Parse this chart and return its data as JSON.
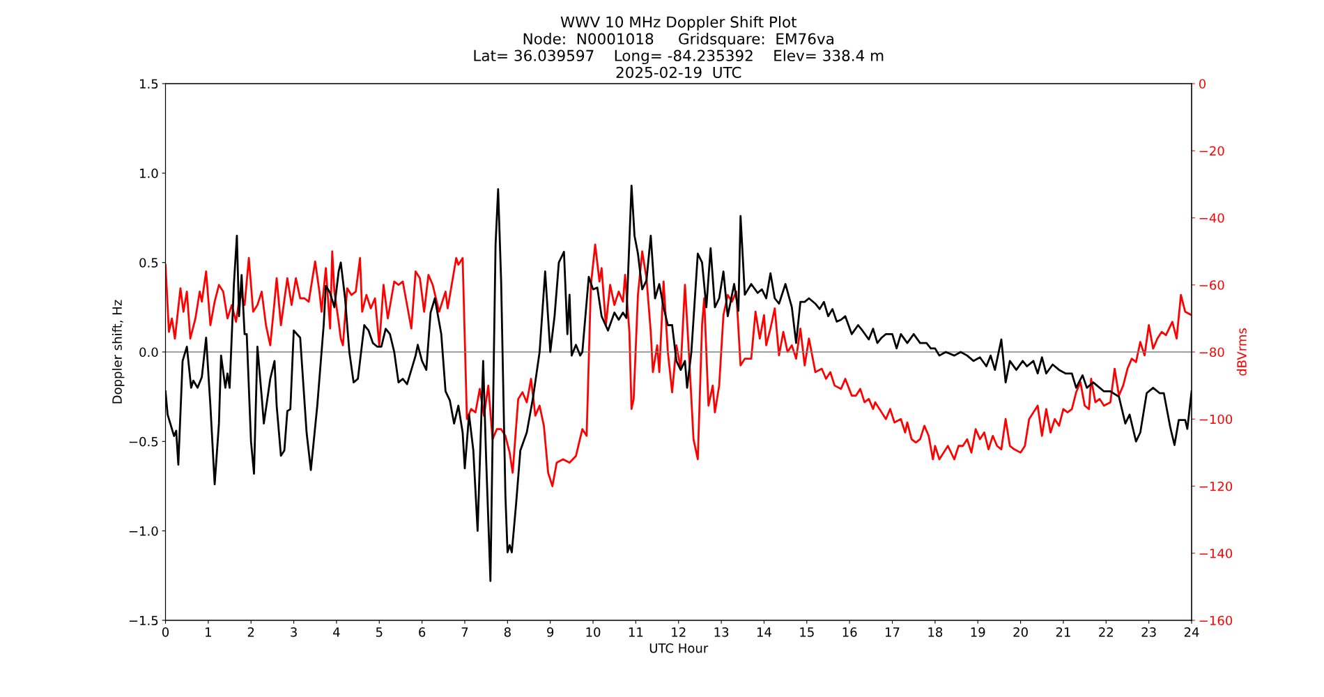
{
  "chart_data": {
    "type": "line",
    "title": "WWV 10 MHz Doppler Shift Plot\nNode:  N0001018     Gridsquare:  EM76va\nLat= 36.039597    Long= -84.235392    Elev= 338.4 m\n2025-02-19  UTC",
    "xlabel": "UTC Hour",
    "ylabel": "Doppler shift, Hz",
    "y2label": "dBVrms",
    "xlim": [
      0,
      24
    ],
    "xticks": [
      0,
      1,
      2,
      3,
      4,
      5,
      6,
      7,
      8,
      9,
      10,
      11,
      12,
      13,
      14,
      15,
      16,
      17,
      18,
      19,
      20,
      21,
      22,
      23,
      24
    ],
    "ylim": [
      -1.5,
      1.5
    ],
    "yticks": [
      {
        "value": -1.5,
        "label": "−1.5"
      },
      {
        "value": -1.0,
        "label": "−1.0"
      },
      {
        "value": -0.5,
        "label": "−0.5"
      },
      {
        "value": 0.0,
        "label": "0.0"
      },
      {
        "value": 0.5,
        "label": "0.5"
      },
      {
        "value": 1.0,
        "label": "1.0"
      },
      {
        "value": 1.5,
        "label": "1.5"
      }
    ],
    "y2lim": [
      -160,
      0
    ],
    "y2ticks": [
      {
        "value": -160,
        "label": "−160"
      },
      {
        "value": -140,
        "label": "−140"
      },
      {
        "value": -120,
        "label": "−120"
      },
      {
        "value": -100,
        "label": "−100"
      },
      {
        "value": -80,
        "label": "−80"
      },
      {
        "value": -60,
        "label": "−60"
      },
      {
        "value": -40,
        "label": "−40"
      },
      {
        "value": -20,
        "label": "−20"
      },
      {
        "value": 0,
        "label": "0"
      }
    ],
    "grid": false,
    "line_style": "solid",
    "marker": "none",
    "ref_lines": [
      {
        "axis": "y",
        "value": 0,
        "color": "#808080",
        "line_style": "solid"
      }
    ],
    "series": [
      {
        "color": "#000000",
        "x": [
          0,
          0.05,
          0.2,
          0.25,
          0.3,
          0.4,
          0.5,
          0.6,
          0.65,
          0.75,
          0.85,
          0.95,
          1.05,
          1.15,
          1.25,
          1.3,
          1.4,
          1.45,
          1.5,
          1.6,
          1.67,
          1.72,
          1.78,
          1.85,
          1.9,
          2.0,
          2.07,
          2.15,
          2.25,
          2.3,
          2.45,
          2.55,
          2.6,
          2.7,
          2.78,
          2.85,
          2.92,
          3.0,
          3.15,
          3.3,
          3.4,
          3.55,
          3.7,
          3.75,
          3.85,
          3.95,
          4.05,
          4.1,
          4.2,
          4.3,
          4.4,
          4.5,
          4.65,
          4.75,
          4.85,
          4.95,
          5.05,
          5.15,
          5.25,
          5.35,
          5.45,
          5.55,
          5.65,
          5.8,
          5.85,
          5.9,
          6.0,
          6.1,
          6.2,
          6.3,
          6.45,
          6.55,
          6.65,
          6.75,
          6.85,
          6.95,
          7.0,
          7.1,
          7.2,
          7.3,
          7.43,
          7.5,
          7.6,
          7.72,
          7.78,
          7.85,
          7.95,
          8.0,
          8.05,
          8.1,
          8.2,
          8.3,
          8.45,
          8.6,
          8.75,
          8.88,
          9.0,
          9.1,
          9.2,
          9.32,
          9.4,
          9.45,
          9.5,
          9.6,
          9.7,
          9.75,
          9.9,
          10.0,
          10.1,
          10.2,
          10.35,
          10.5,
          10.6,
          10.7,
          10.78,
          10.9,
          10.97,
          11.05,
          11.15,
          11.25,
          11.35,
          11.45,
          11.55,
          11.65,
          11.75,
          11.85,
          11.95,
          12.05,
          12.15,
          12.2,
          12.3,
          12.45,
          12.55,
          12.65,
          12.75,
          12.85,
          12.95,
          13.05,
          13.15,
          13.3,
          13.4,
          13.45,
          13.55,
          13.7,
          13.85,
          13.95,
          14.05,
          14.15,
          14.25,
          14.35,
          14.5,
          14.65,
          14.75,
          14.85,
          14.95,
          15.05,
          15.2,
          15.3,
          15.4,
          15.5,
          15.6,
          15.7,
          15.8,
          15.9,
          16.05,
          16.2,
          16.3,
          16.45,
          16.55,
          16.65,
          16.75,
          16.85,
          17.0,
          17.1,
          17.2,
          17.35,
          17.5,
          17.65,
          17.8,
          17.9,
          18.0,
          18.1,
          18.25,
          18.45,
          18.6,
          18.75,
          18.9,
          19.05,
          19.2,
          19.3,
          19.4,
          19.55,
          19.65,
          19.75,
          19.9,
          20.05,
          20.15,
          20.3,
          20.4,
          20.5,
          20.6,
          20.75,
          20.9,
          21.05,
          21.2,
          21.3,
          21.45,
          21.55,
          21.7,
          21.85,
          21.95,
          22.1,
          22.3,
          22.45,
          22.55,
          22.7,
          22.8,
          22.95,
          23.1,
          23.25,
          23.35,
          23.5,
          23.6,
          23.7,
          23.85,
          23.9,
          24.0
        ],
        "values": [
          -0.22,
          -0.35,
          -0.47,
          -0.44,
          -0.63,
          -0.05,
          0.03,
          -0.2,
          -0.16,
          -0.2,
          -0.14,
          0.08,
          -0.3,
          -0.74,
          -0.4,
          -0.02,
          -0.2,
          -0.12,
          -0.2,
          0.38,
          0.65,
          0.2,
          0.43,
          0.1,
          0.1,
          -0.5,
          -0.68,
          0.03,
          -0.25,
          -0.4,
          -0.15,
          -0.05,
          -0.3,
          -0.58,
          -0.55,
          -0.33,
          -0.32,
          0.12,
          0.08,
          -0.45,
          -0.66,
          -0.3,
          0.15,
          0.37,
          0.33,
          0.25,
          0.45,
          0.5,
          0.3,
          0.0,
          -0.17,
          -0.15,
          0.15,
          0.12,
          0.05,
          0.03,
          0.03,
          0.13,
          0.1,
          0.0,
          -0.17,
          -0.15,
          -0.18,
          -0.06,
          -0.02,
          0.04,
          -0.05,
          -0.1,
          0.22,
          0.3,
          0.1,
          -0.22,
          -0.27,
          -0.4,
          -0.3,
          -0.45,
          -0.65,
          -0.35,
          -0.55,
          -1.0,
          -0.05,
          -0.6,
          -1.28,
          0.6,
          0.91,
          0.4,
          -0.8,
          -1.12,
          -1.08,
          -1.12,
          -0.85,
          -0.55,
          -0.45,
          -0.25,
          0.0,
          0.45,
          0.0,
          0.2,
          0.5,
          0.56,
          0.1,
          0.32,
          -0.02,
          0.04,
          -0.02,
          0.0,
          0.42,
          0.35,
          0.36,
          0.2,
          0.12,
          0.22,
          0.18,
          0.22,
          0.19,
          0.93,
          0.65,
          0.55,
          0.35,
          0.4,
          0.65,
          0.3,
          0.38,
          0.25,
          0.15,
          0.15,
          -0.05,
          -0.1,
          -0.05,
          -0.2,
          0.0,
          0.55,
          0.5,
          0.25,
          0.58,
          0.25,
          0.3,
          0.45,
          0.2,
          0.38,
          0.23,
          0.76,
          0.32,
          0.38,
          0.33,
          0.35,
          0.3,
          0.44,
          0.3,
          0.27,
          0.38,
          0.25,
          0.05,
          0.28,
          0.28,
          0.3,
          0.27,
          0.24,
          0.28,
          0.2,
          0.24,
          0.17,
          0.18,
          0.2,
          0.1,
          0.15,
          0.12,
          0.07,
          0.13,
          0.05,
          0.08,
          0.1,
          0.1,
          0.02,
          0.1,
          0.05,
          0.1,
          0.05,
          0.05,
          0.02,
          0.02,
          -0.02,
          0.0,
          -0.02,
          0.0,
          -0.02,
          -0.05,
          -0.03,
          -0.08,
          -0.02,
          -0.1,
          0.07,
          -0.17,
          -0.05,
          -0.1,
          -0.05,
          -0.08,
          -0.05,
          -0.12,
          -0.03,
          -0.12,
          -0.07,
          -0.1,
          -0.12,
          -0.12,
          -0.2,
          -0.13,
          -0.2,
          -0.17,
          -0.2,
          -0.22,
          -0.22,
          -0.25,
          -0.4,
          -0.35,
          -0.5,
          -0.45,
          -0.23,
          -0.2,
          -0.23,
          -0.23,
          -0.42,
          -0.52,
          -0.38,
          -0.38,
          -0.43,
          -0.22
        ]
      },
      {
        "color": "#ff0000",
        "axis": "y2",
        "x": [
          0,
          0.08,
          0.15,
          0.22,
          0.35,
          0.42,
          0.5,
          0.58,
          0.7,
          0.8,
          0.85,
          0.95,
          1.05,
          1.15,
          1.25,
          1.35,
          1.45,
          1.55,
          1.65,
          1.75,
          1.85,
          1.95,
          2.05,
          2.15,
          2.25,
          2.35,
          2.45,
          2.55,
          2.6,
          2.7,
          2.85,
          2.95,
          3.05,
          3.15,
          3.25,
          3.35,
          3.5,
          3.6,
          3.65,
          3.75,
          3.85,
          3.9,
          3.95,
          4.05,
          4.1,
          4.15,
          4.25,
          4.35,
          4.45,
          4.55,
          4.6,
          4.7,
          4.8,
          4.9,
          5.0,
          5.1,
          5.2,
          5.35,
          5.45,
          5.55,
          5.65,
          5.75,
          5.85,
          5.95,
          6.05,
          6.15,
          6.25,
          6.4,
          6.55,
          6.6,
          6.8,
          6.85,
          6.95,
          7.05,
          7.15,
          7.25,
          7.35,
          7.45,
          7.55,
          7.65,
          7.75,
          7.85,
          7.95,
          8.05,
          8.12,
          8.25,
          8.35,
          8.45,
          8.55,
          8.65,
          8.75,
          8.85,
          8.95,
          9.05,
          9.15,
          9.3,
          9.45,
          9.6,
          9.75,
          9.85,
          9.95,
          10.05,
          10.15,
          10.2,
          10.3,
          10.4,
          10.5,
          10.6,
          10.7,
          10.75,
          10.85,
          10.9,
          10.95,
          11.05,
          11.15,
          11.25,
          11.35,
          11.4,
          11.5,
          11.55,
          11.65,
          11.75,
          11.85,
          11.95,
          12.05,
          12.15,
          12.25,
          12.35,
          12.45,
          12.55,
          12.6,
          12.7,
          12.8,
          12.85,
          12.95,
          13.05,
          13.15,
          13.25,
          13.35,
          13.45,
          13.55,
          13.7,
          13.8,
          13.9,
          14.0,
          14.05,
          14.15,
          14.25,
          14.35,
          14.45,
          14.55,
          14.65,
          14.75,
          14.85,
          14.95,
          15.05,
          15.2,
          15.35,
          15.45,
          15.55,
          15.65,
          15.8,
          15.9,
          16.05,
          16.15,
          16.25,
          16.35,
          16.45,
          16.55,
          16.6,
          16.75,
          16.85,
          16.95,
          17.05,
          17.2,
          17.3,
          17.35,
          17.45,
          17.55,
          17.65,
          17.75,
          17.85,
          17.95,
          18.0,
          18.1,
          18.2,
          18.3,
          18.45,
          18.55,
          18.65,
          18.75,
          18.85,
          18.95,
          19.05,
          19.15,
          19.25,
          19.35,
          19.45,
          19.55,
          19.65,
          19.75,
          19.85,
          20.0,
          20.1,
          20.2,
          20.3,
          20.4,
          20.5,
          20.6,
          20.7,
          20.8,
          20.9,
          21.0,
          21.1,
          21.2,
          21.3,
          21.4,
          21.5,
          21.6,
          21.65,
          21.75,
          21.85,
          21.95,
          22.1,
          22.2,
          22.3,
          22.4,
          22.5,
          22.6,
          22.7,
          22.8,
          22.9,
          23.0,
          23.1,
          23.2,
          23.3,
          23.4,
          23.55,
          23.65,
          23.75,
          23.85,
          24.0
        ],
        "values": [
          -54,
          -74,
          -70,
          -76,
          -61,
          -68,
          -62,
          -76,
          -70,
          -62,
          -65,
          -56,
          -72,
          -65,
          -60,
          -62,
          -70,
          -66,
          -71,
          -62,
          -66,
          -52,
          -68,
          -66,
          -62,
          -72,
          -78,
          -65,
          -58,
          -72,
          -58,
          -66,
          -58,
          -64,
          -64,
          -65,
          -53,
          -62,
          -68,
          -55,
          -73,
          -50,
          -62,
          -71,
          -76,
          -78,
          -61,
          -63,
          -62,
          -52,
          -68,
          -63,
          -67,
          -64,
          -78,
          -60,
          -70,
          -59,
          -60,
          -59,
          -66,
          -73,
          -56,
          -58,
          -68,
          -57,
          -60,
          -68,
          -62,
          -67,
          -52,
          -54,
          -52,
          -100,
          -97,
          -98,
          -91,
          -99,
          -90,
          -106,
          -103,
          -103,
          -105,
          -110,
          -116,
          -94,
          -92,
          -95,
          -88,
          -99,
          -96,
          -102,
          -116,
          -120,
          -113,
          -112,
          -113,
          -111,
          -103,
          -105,
          -60,
          -48,
          -59,
          -55,
          -72,
          -60,
          -66,
          -62,
          -65,
          -57,
          -74,
          -97,
          -94,
          -63,
          -50,
          -58,
          -74,
          -86,
          -78,
          -86,
          -59,
          -80,
          -92,
          -78,
          -85,
          -60,
          -82,
          -106,
          -112,
          -72,
          -64,
          -96,
          -90,
          -98,
          -90,
          -69,
          -63,
          -65,
          -62,
          -84,
          -82,
          -82,
          -68,
          -76,
          -69,
          -78,
          -73,
          -67,
          -81,
          -74,
          -80,
          -78,
          -82,
          -73,
          -84,
          -76,
          -86,
          -85,
          -88,
          -86,
          -90,
          -91,
          -88,
          -93,
          -93,
          -91,
          -95,
          -94,
          -97,
          -95,
          -98,
          -100,
          -97,
          -101,
          -100,
          -104,
          -101,
          -106,
          -107,
          -106,
          -102,
          -105,
          -112,
          -108,
          -112,
          -110,
          -108,
          -112,
          -108,
          -108,
          -106,
          -110,
          -103,
          -106,
          -104,
          -109,
          -105,
          -108,
          -109,
          -100,
          -108,
          -109,
          -110,
          -108,
          -100,
          -98,
          -96,
          -105,
          -97,
          -104,
          -100,
          -102,
          -97,
          -98,
          -97,
          -92,
          -89,
          -96,
          -97,
          -88,
          -95,
          -94,
          -96,
          -95,
          -85,
          -93,
          -90,
          -85,
          -82,
          -83,
          -77,
          -81,
          -72,
          -79,
          -76,
          -74,
          -75,
          -71,
          -76,
          -63,
          -68,
          -69
        ]
      }
    ]
  }
}
